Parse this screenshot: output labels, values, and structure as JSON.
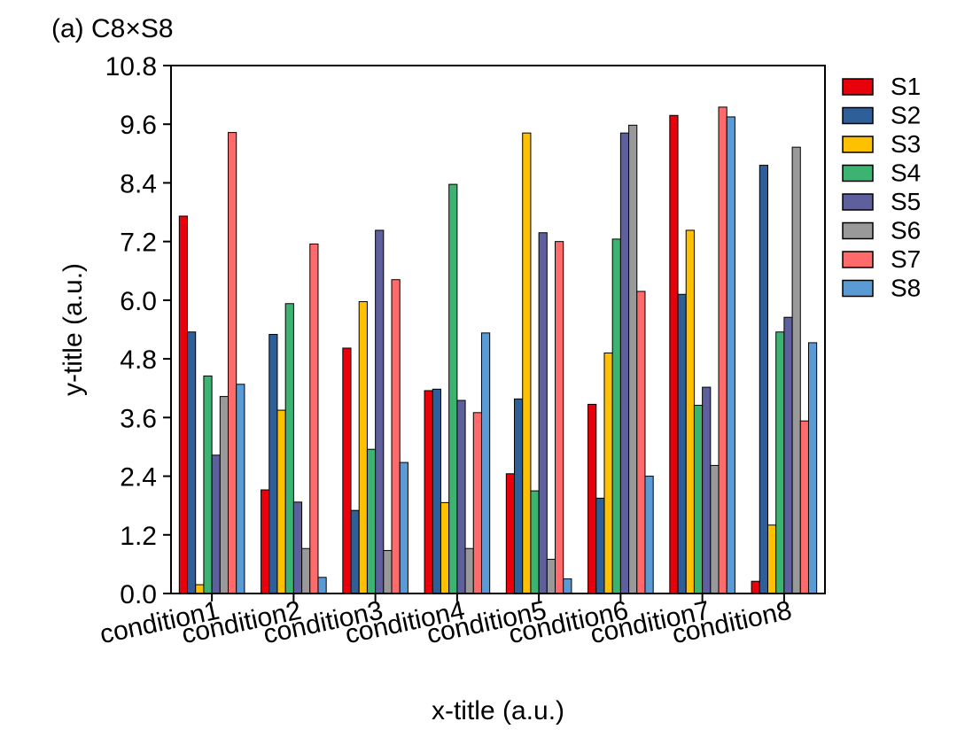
{
  "chart_data": {
    "type": "bar",
    "title": "(a) C8×S8",
    "xlabel": "x-title (a.u.)",
    "ylabel": "y-title (a.u.)",
    "ylim": [
      0,
      10.8
    ],
    "yticks": [
      "0.0",
      "1.2",
      "2.4",
      "3.6",
      "4.8",
      "6.0",
      "7.2",
      "8.4",
      "9.6",
      "10.8"
    ],
    "categories": [
      "condition1",
      "condition2",
      "condition3",
      "condition4",
      "condition5",
      "condition6",
      "condition7",
      "condition8"
    ],
    "grid": false,
    "legend_position": "right",
    "series": [
      {
        "name": "S1",
        "color": "#e8000b",
        "values": [
          7.72,
          2.12,
          5.02,
          4.15,
          2.45,
          3.87,
          9.78,
          0.25
        ]
      },
      {
        "name": "S2",
        "color": "#2f5f98",
        "values": [
          5.35,
          5.3,
          1.7,
          4.18,
          3.98,
          1.95,
          6.12,
          8.76
        ]
      },
      {
        "name": "S3",
        "color": "#ffc000",
        "values": [
          0.18,
          3.75,
          5.97,
          1.86,
          9.42,
          4.92,
          7.43,
          1.4
        ]
      },
      {
        "name": "S4",
        "color": "#3cb371",
        "values": [
          4.45,
          5.93,
          2.95,
          8.37,
          2.1,
          7.25,
          3.85,
          5.35
        ]
      },
      {
        "name": "S5",
        "color": "#5e5f9d",
        "values": [
          2.83,
          1.87,
          7.43,
          3.95,
          7.38,
          9.42,
          4.22,
          5.65
        ]
      },
      {
        "name": "S6",
        "color": "#999999",
        "values": [
          4.03,
          0.92,
          0.88,
          0.92,
          0.7,
          9.58,
          2.62,
          9.13
        ]
      },
      {
        "name": "S7",
        "color": "#ff6b6b",
        "values": [
          9.43,
          7.15,
          6.42,
          3.7,
          7.2,
          6.18,
          9.95,
          3.53
        ]
      },
      {
        "name": "S8",
        "color": "#5b9bd5",
        "values": [
          4.28,
          0.33,
          2.68,
          5.33,
          0.3,
          2.4,
          9.75,
          5.13
        ]
      }
    ]
  }
}
